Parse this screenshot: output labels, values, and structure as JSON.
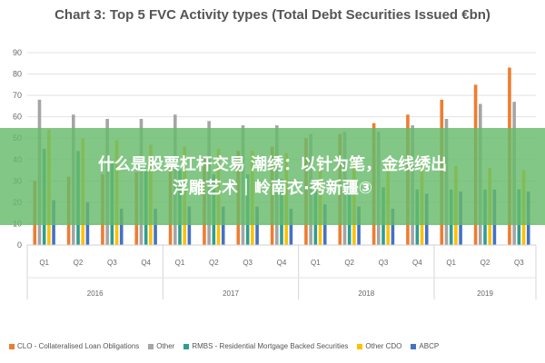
{
  "chart_data": {
    "type": "bar",
    "title": "Chart 3: Top 5 FVC Activity types (Total Debt Securities Issued €bn)",
    "xlabel": "",
    "ylabel": "",
    "ylim": [
      0,
      90
    ],
    "yticks": [
      0,
      10,
      20,
      30,
      40,
      50,
      60,
      70,
      80,
      90
    ],
    "grid": true,
    "legend_position": "bottom",
    "categories": [
      "Q1",
      "Q2",
      "Q3",
      "Q4",
      "Q1",
      "Q2",
      "Q3",
      "Q4",
      "Q1",
      "Q2",
      "Q3",
      "Q4",
      "Q1",
      "Q2",
      "Q3"
    ],
    "groups": [
      {
        "label": "2016",
        "count": 4
      },
      {
        "label": "2017",
        "count": 4
      },
      {
        "label": "2018",
        "count": 4
      },
      {
        "label": "2019",
        "count": 3
      }
    ],
    "series": [
      {
        "name": "CLO - Collateralised Loan Obligations",
        "color": "#ed7d31",
        "values": [
          30,
          32,
          33,
          34,
          38,
          41,
          44,
          46,
          50,
          52,
          57,
          61,
          68,
          75,
          83
        ]
      },
      {
        "name": "Other",
        "color": "#a5a5a5",
        "values": [
          68,
          61,
          59,
          59,
          61,
          58,
          56,
          56,
          52,
          53,
          53,
          56,
          59,
          66,
          67
        ]
      },
      {
        "name": "RMBS - Residential Mortgage Backed Securities",
        "color": "#2e9e8f",
        "values": [
          45,
          44,
          38,
          36,
          35,
          33,
          33,
          31,
          28,
          27,
          27,
          26,
          26,
          26,
          26
        ]
      },
      {
        "name": "Other CDO",
        "color": "#ffc000",
        "values": [
          54,
          50,
          49,
          47,
          46,
          45,
          44,
          43,
          41,
          40,
          39,
          39,
          37,
          36,
          35
        ]
      },
      {
        "name": "ABCP",
        "color": "#4472c4",
        "values": [
          21,
          20,
          17,
          17,
          18,
          18,
          18,
          17,
          19,
          18,
          17,
          24,
          25,
          26,
          25
        ]
      }
    ]
  },
  "overlay": {
    "line1": "什么是股票杠杆交易 潮绣：以针为笔，金线绣出",
    "line2": "浮雕艺术｜岭南衣·秀新疆③"
  }
}
